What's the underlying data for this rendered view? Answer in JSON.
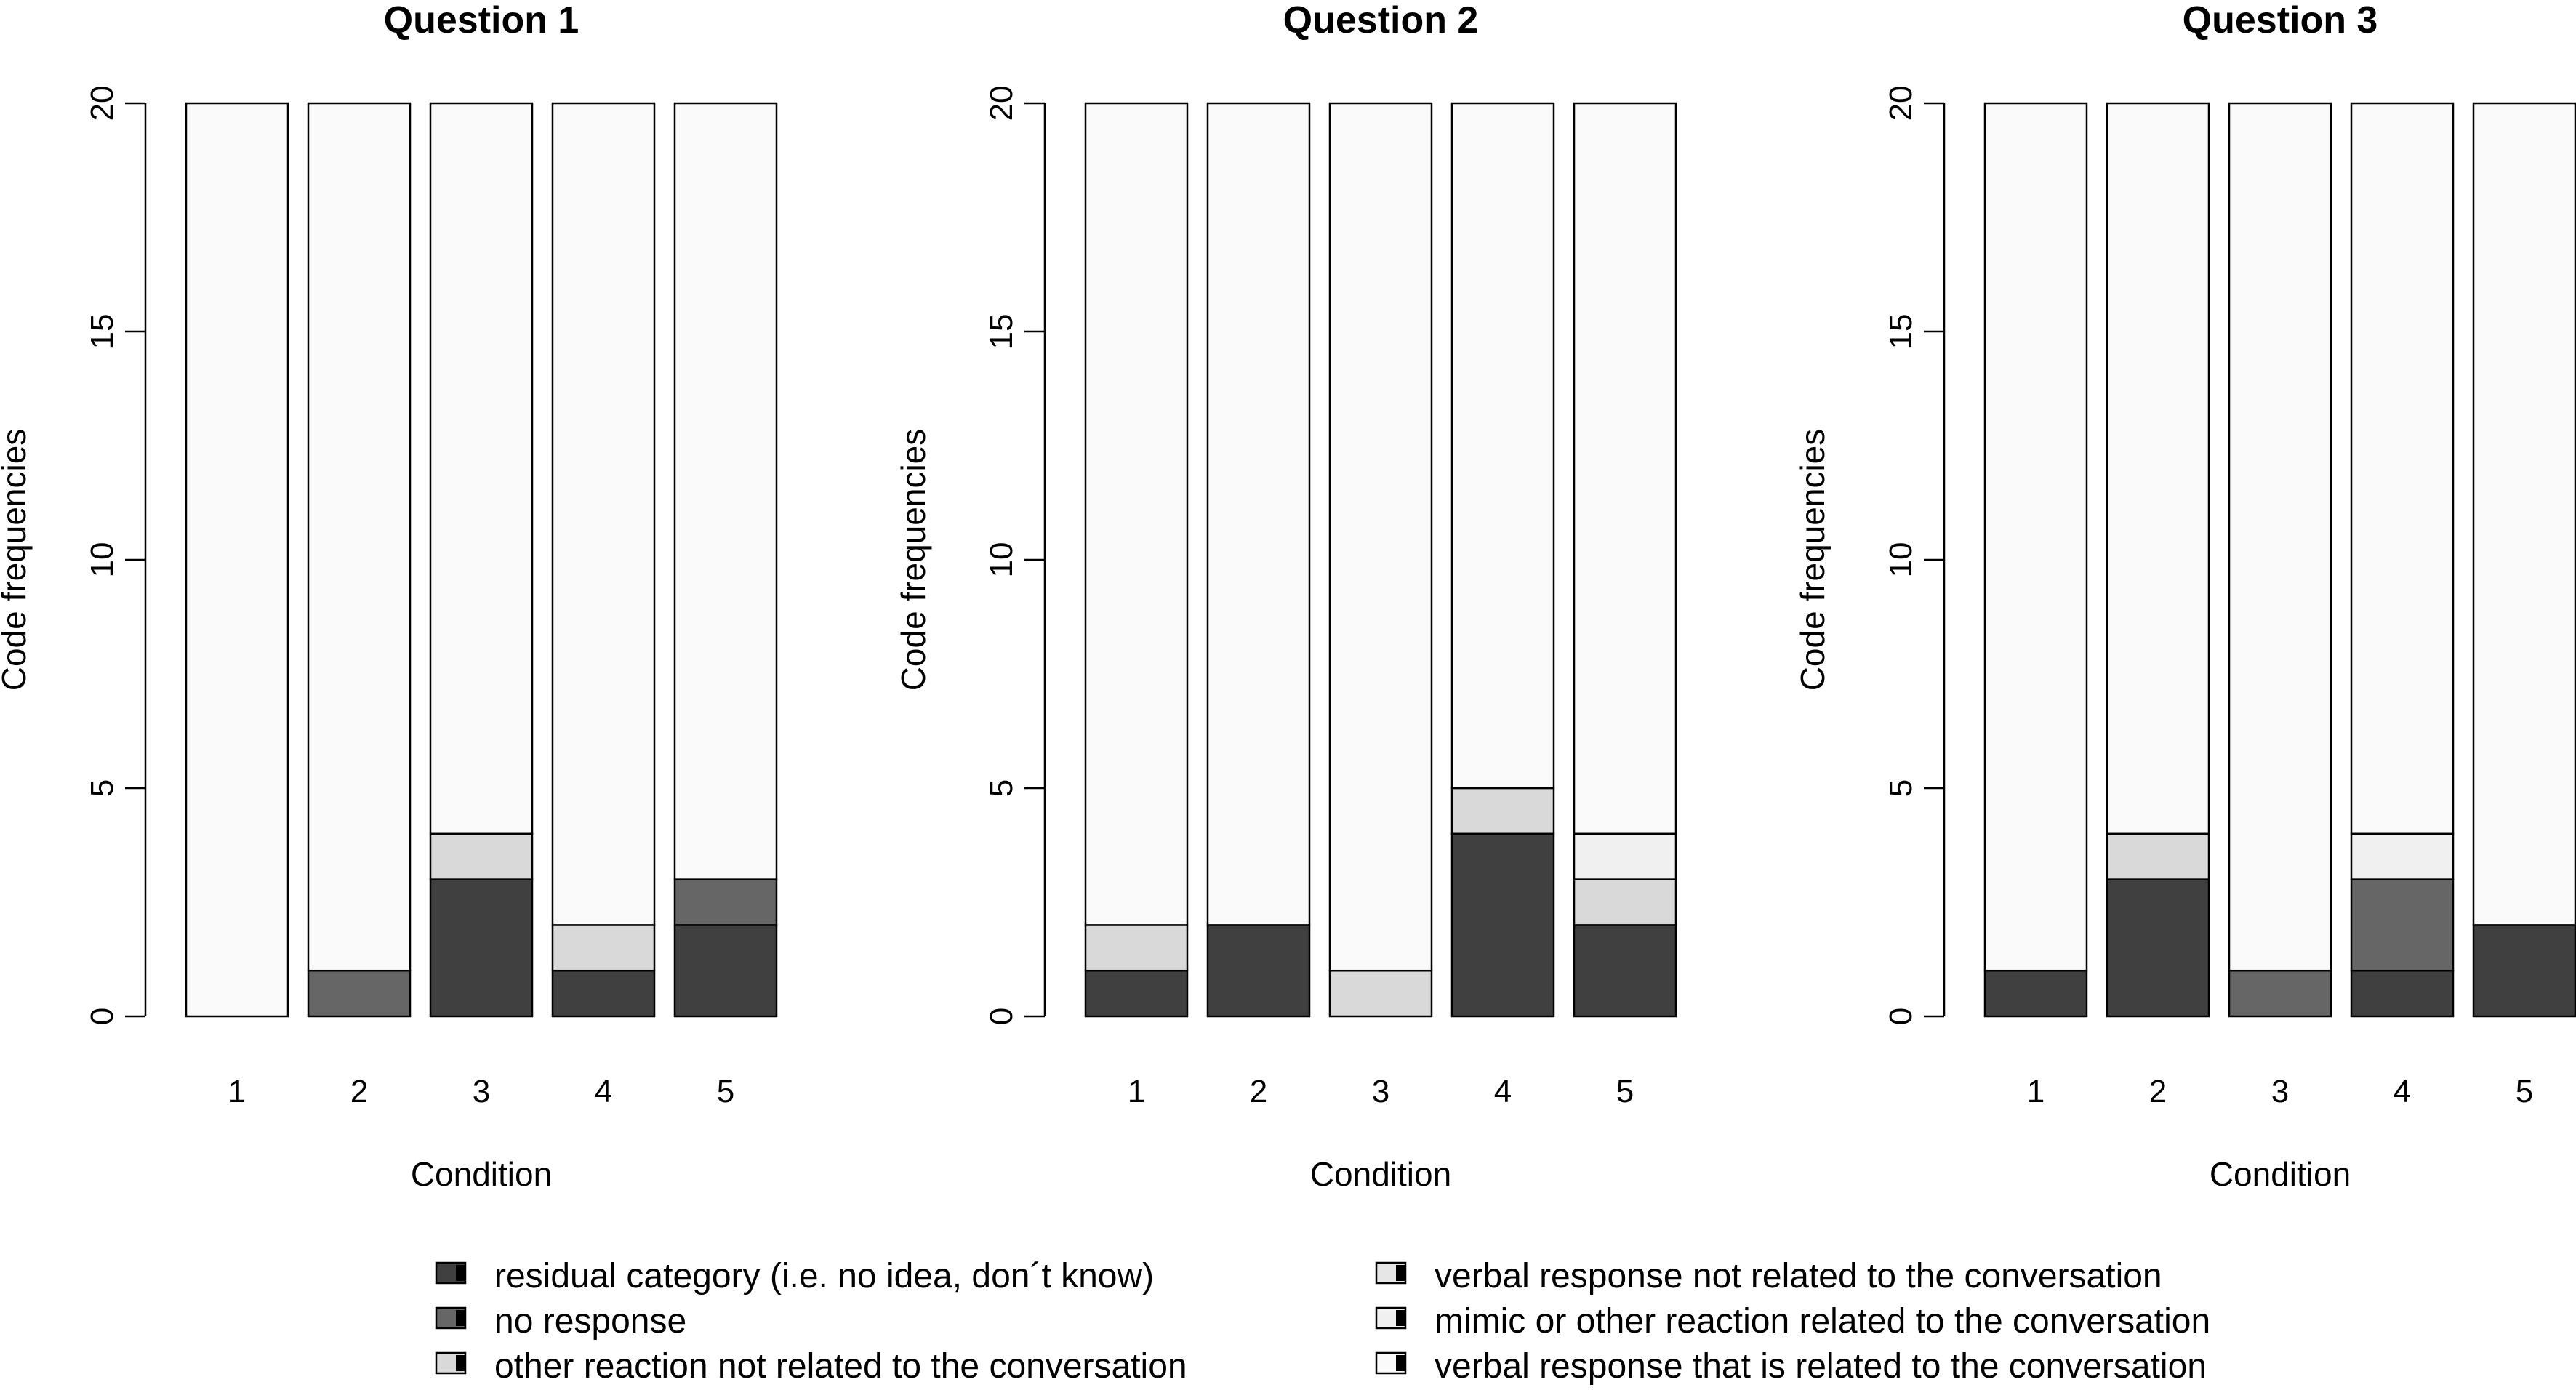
{
  "chart_data": {
    "type": "bar",
    "stacked": true,
    "ylim": [
      0,
      20
    ],
    "yticks": [
      0,
      5,
      10,
      15,
      20
    ],
    "categories": [
      "1",
      "2",
      "3",
      "4",
      "5"
    ],
    "xlabel": "Condition",
    "ylabel": "Code frequencies",
    "legend": {
      "placement": "bottom",
      "items": [
        {
          "label": "residual category (i.e. no idea, don´t know)",
          "color": "#404040"
        },
        {
          "label": "no response",
          "color": "#666666"
        },
        {
          "label": "other reaction not related to the conversation",
          "color": "#d9d9d9"
        },
        {
          "label": "verbal response not related to the conversation",
          "color": "#e6e6e6"
        },
        {
          "label": "mimic or other reaction related to the conversation",
          "color": "#f0f0f0"
        },
        {
          "label": "verbal response that is related to the conversation",
          "color": "#fafafa"
        }
      ]
    },
    "panels": [
      {
        "title": "Question 1",
        "bars": [
          [
            0,
            0,
            0,
            0,
            0,
            20
          ],
          [
            0,
            1,
            0,
            0,
            0,
            19
          ],
          [
            3,
            0,
            1,
            0,
            0,
            16
          ],
          [
            1,
            0,
            1,
            0,
            0,
            18
          ],
          [
            2,
            1,
            0,
            0,
            0,
            17
          ]
        ]
      },
      {
        "title": "Question 2",
        "bars": [
          [
            1,
            0,
            1,
            0,
            0,
            18
          ],
          [
            2,
            0,
            0,
            0,
            0,
            18
          ],
          [
            0,
            0,
            1,
            0,
            0,
            19
          ],
          [
            4,
            0,
            1,
            0,
            0,
            15
          ],
          [
            2,
            0,
            1,
            0,
            1,
            16
          ]
        ]
      },
      {
        "title": "Question 3",
        "bars": [
          [
            1,
            0,
            0,
            0,
            0,
            19
          ],
          [
            3,
            0,
            1,
            0,
            0,
            16
          ],
          [
            0,
            1,
            0,
            0,
            0,
            19
          ],
          [
            1,
            2,
            0,
            0,
            1,
            16
          ],
          [
            2,
            0,
            0,
            0,
            0,
            18
          ]
        ]
      }
    ]
  }
}
